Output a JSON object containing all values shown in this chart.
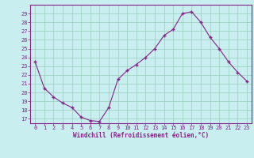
{
  "x": [
    0,
    1,
    2,
    3,
    4,
    5,
    6,
    7,
    8,
    9,
    10,
    11,
    12,
    13,
    14,
    15,
    16,
    17,
    18,
    19,
    20,
    21,
    22,
    23
  ],
  "y": [
    23.5,
    20.5,
    19.5,
    18.8,
    18.3,
    17.2,
    16.8,
    16.7,
    18.3,
    21.5,
    22.5,
    23.2,
    24.0,
    25.0,
    26.5,
    27.2,
    29.0,
    29.2,
    28.0,
    26.3,
    25.0,
    23.5,
    22.3,
    21.3
  ],
  "line_color": "#882288",
  "marker": "+",
  "marker_size": 3.5,
  "marker_linewidth": 1.0,
  "bg_color": "#c8eef0",
  "grid_color": "#99ccbb",
  "spine_color": "#882288",
  "tick_color": "#882288",
  "label_color": "#882288",
  "xlabel": "Windchill (Refroidissement éolien,°C)",
  "xlim": [
    -0.5,
    23.5
  ],
  "ylim": [
    16.5,
    30.0
  ],
  "yticks": [
    17,
    18,
    19,
    20,
    21,
    22,
    23,
    24,
    25,
    26,
    27,
    28,
    29
  ],
  "xticks": [
    0,
    1,
    2,
    3,
    4,
    5,
    6,
    7,
    8,
    9,
    10,
    11,
    12,
    13,
    14,
    15,
    16,
    17,
    18,
    19,
    20,
    21,
    22,
    23
  ],
  "tick_fontsize": 5.0,
  "xlabel_fontsize": 5.5,
  "linewidth": 0.8
}
